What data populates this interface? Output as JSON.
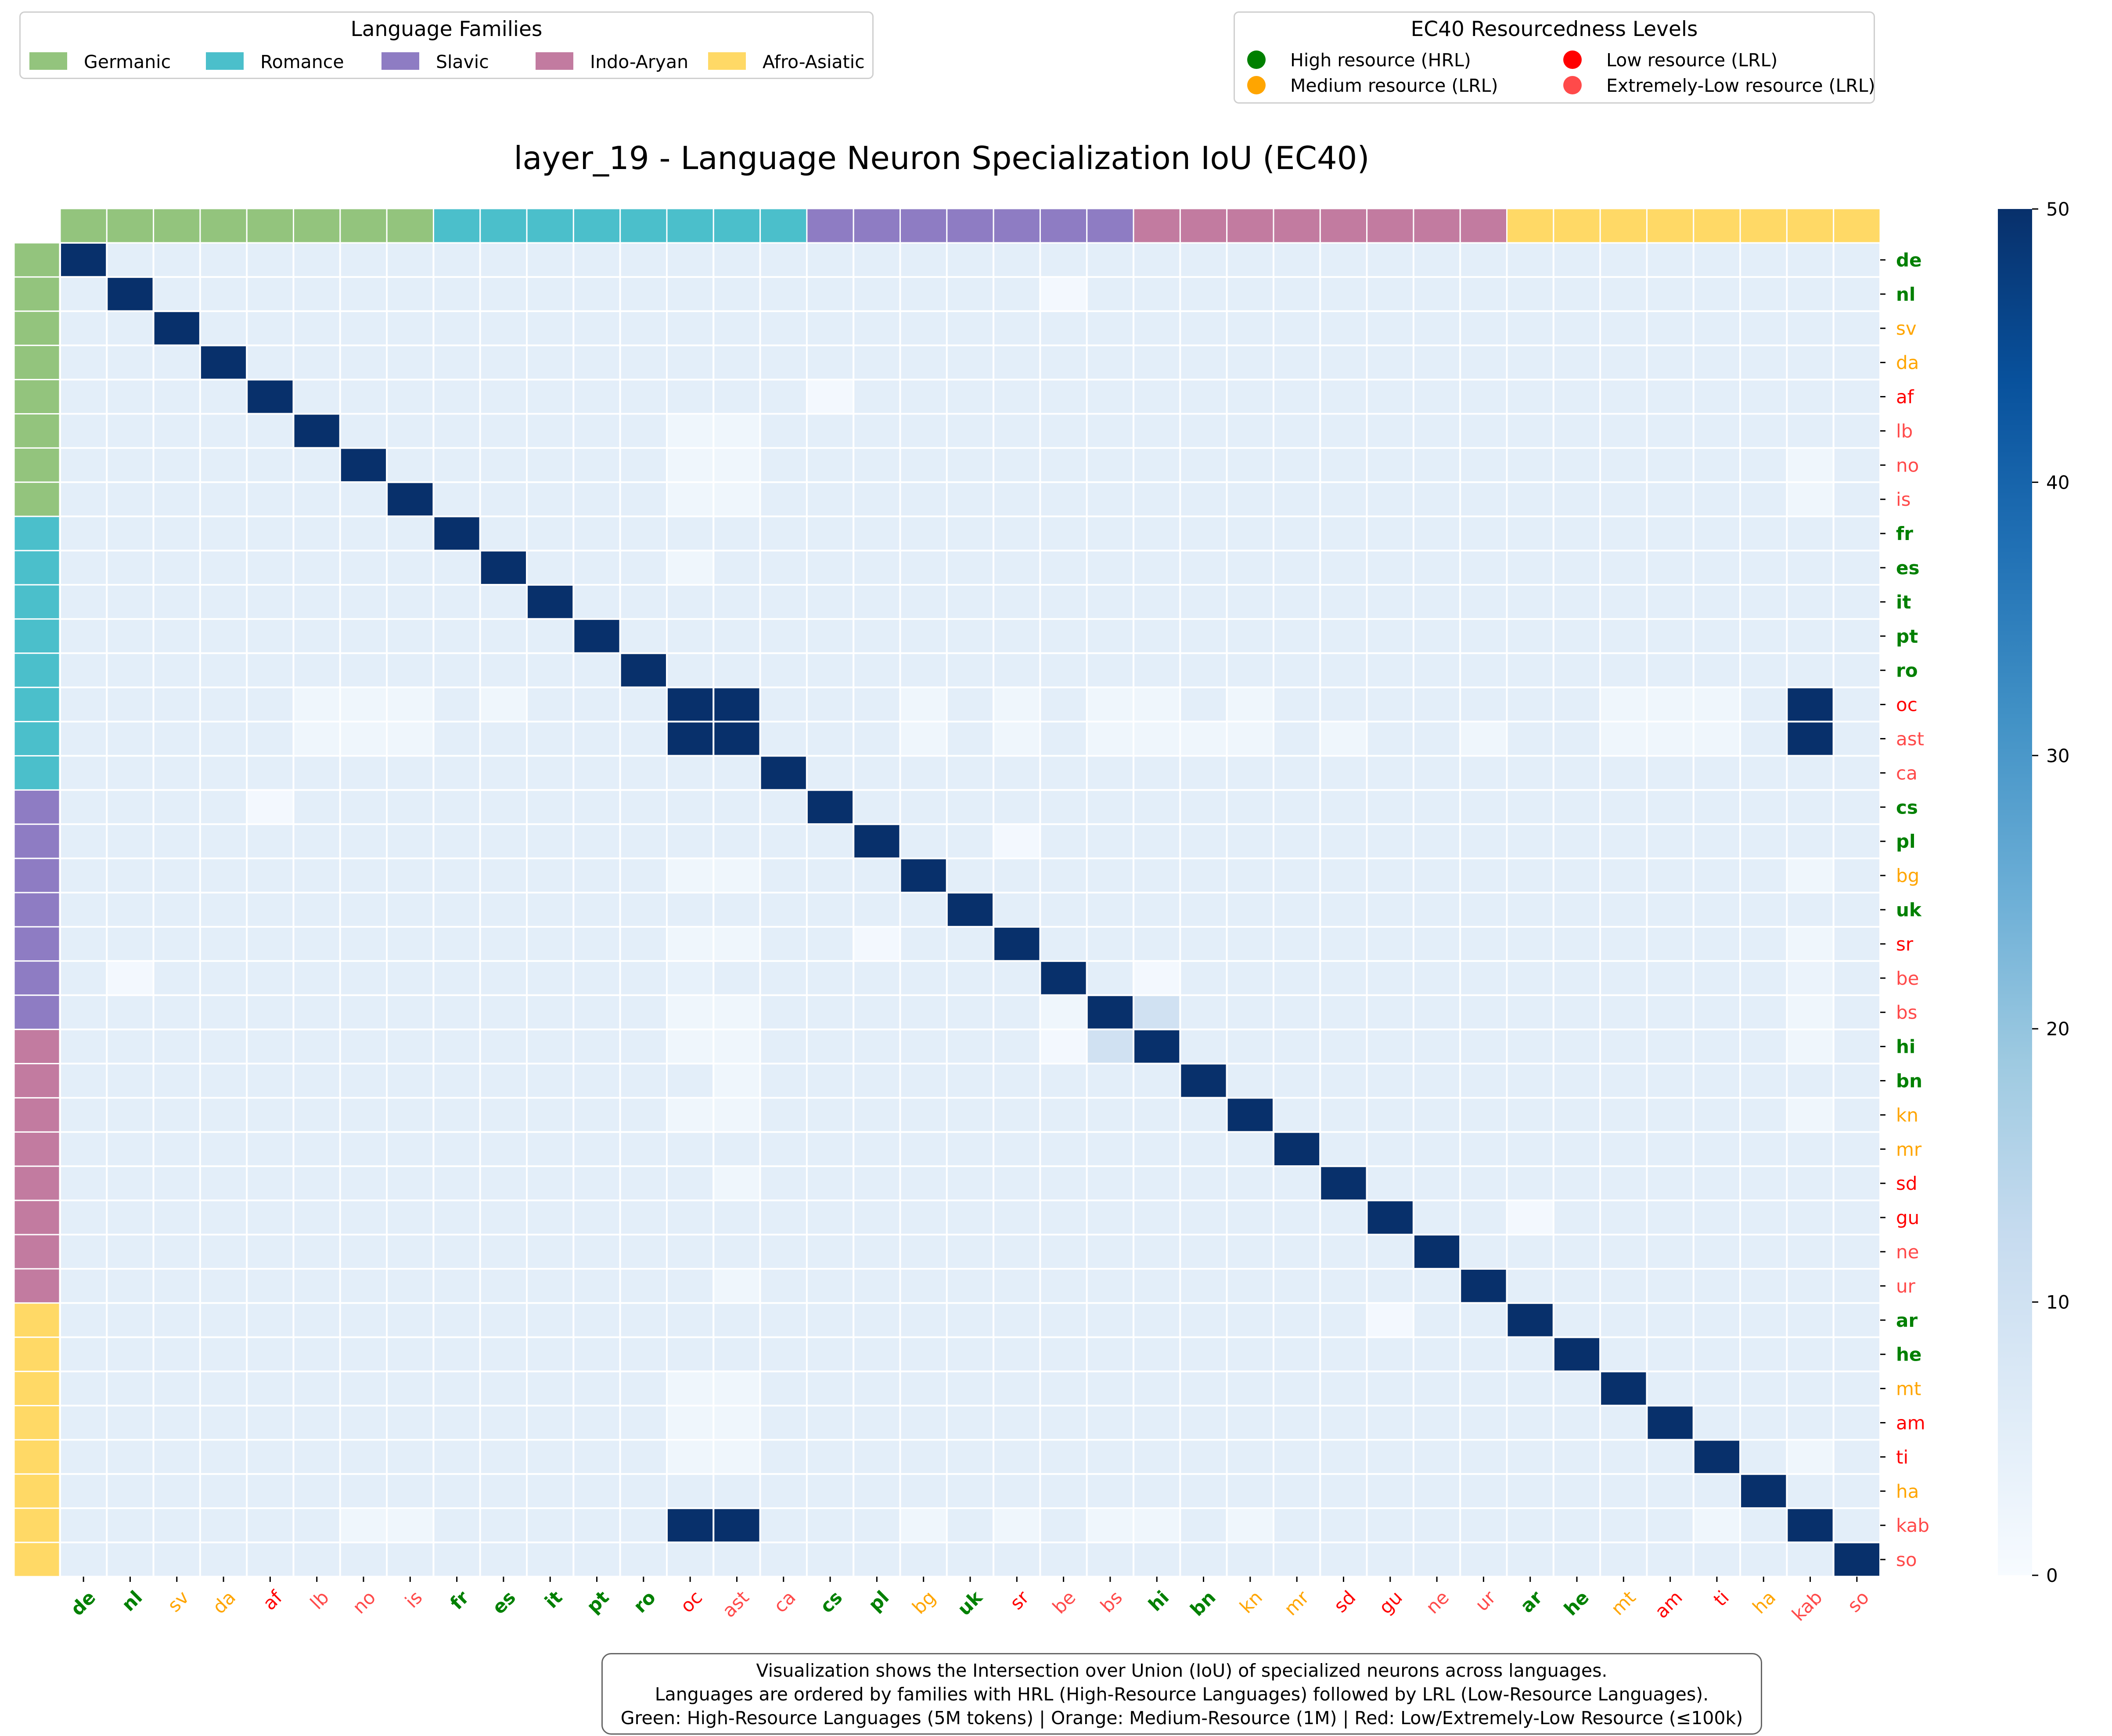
{
  "legend_families": {
    "title": "Language Families",
    "items": [
      {
        "label": "Germanic",
        "color": "#93c47d"
      },
      {
        "label": "Romance",
        "color": "#4bbfcb"
      },
      {
        "label": "Slavic",
        "color": "#8e7cc3"
      },
      {
        "label": "Indo-Aryan",
        "color": "#c27ba0"
      },
      {
        "label": "Afro-Asiatic",
        "color": "#ffd966"
      }
    ]
  },
  "legend_resource": {
    "title": "EC40 Resourcedness Levels",
    "items": [
      {
        "label": "High resource (HRL)",
        "color": "#008000"
      },
      {
        "label": "Low resource (LRL)",
        "color": "#ff0000"
      },
      {
        "label": "Medium resource (LRL)",
        "color": "#ffa500"
      },
      {
        "label": "Extremely-Low resource (LRL)",
        "color": "#ff4a4a"
      }
    ]
  },
  "note": {
    "line1": "Visualization shows the Intersection over Union (IoU) of specialized neurons across languages.",
    "line2": "Languages are ordered by families with HRL (High-Resource Languages) followed by LRL (Low-Resource Languages).",
    "line3": "Green: High-Resource Languages (5M tokens) | Orange: Medium-Resource (1M) | Red: Low/Extremely-Low Resource (≤100k)"
  },
  "chart_data": {
    "type": "heatmap",
    "title": "layer_19 - Language Neuron Specialization IoU (EC40)",
    "languages": [
      "de",
      "nl",
      "sv",
      "da",
      "af",
      "lb",
      "no",
      "is",
      "fr",
      "es",
      "it",
      "pt",
      "ro",
      "oc",
      "ast",
      "ca",
      "cs",
      "pl",
      "bg",
      "uk",
      "sr",
      "be",
      "bs",
      "hi",
      "bn",
      "kn",
      "mr",
      "sd",
      "gu",
      "ne",
      "ur",
      "ar",
      "he",
      "mt",
      "am",
      "ti",
      "ha",
      "kab",
      "so"
    ],
    "families": [
      "Germanic",
      "Germanic",
      "Germanic",
      "Germanic",
      "Germanic",
      "Germanic",
      "Germanic",
      "Germanic",
      "Romance",
      "Romance",
      "Romance",
      "Romance",
      "Romance",
      "Romance",
      "Romance",
      "Romance",
      "Slavic",
      "Slavic",
      "Slavic",
      "Slavic",
      "Slavic",
      "Slavic",
      "Slavic",
      "Indo-Aryan",
      "Indo-Aryan",
      "Indo-Aryan",
      "Indo-Aryan",
      "Indo-Aryan",
      "Indo-Aryan",
      "Indo-Aryan",
      "Indo-Aryan",
      "Afro-Asiatic",
      "Afro-Asiatic",
      "Afro-Asiatic",
      "Afro-Asiatic",
      "Afro-Asiatic",
      "Afro-Asiatic",
      "Afro-Asiatic",
      "Afro-Asiatic"
    ],
    "resource": [
      "high",
      "high",
      "medium",
      "medium",
      "low",
      "extremely-low",
      "extremely-low",
      "extremely-low",
      "high",
      "high",
      "high",
      "high",
      "high",
      "low",
      "extremely-low",
      "extremely-low",
      "high",
      "high",
      "medium",
      "high",
      "low",
      "extremely-low",
      "extremely-low",
      "high",
      "high",
      "medium",
      "medium",
      "low",
      "low",
      "extremely-low",
      "extremely-low",
      "high",
      "high",
      "medium",
      "low",
      "low",
      "medium",
      "extremely-low",
      "extremely-low"
    ],
    "resource_colors": {
      "high": "#008000",
      "medium": "#ffa500",
      "low": "#ff0000",
      "extremely-low": "#ff4a4a"
    },
    "diagonal_value": 50,
    "background_value": 5,
    "off_diagonal": [
      {
        "row": "oc",
        "col": "ast",
        "value": 50
      },
      {
        "row": "ast",
        "col": "oc",
        "value": 50
      },
      {
        "row": "oc",
        "col": "kab",
        "value": 50
      },
      {
        "row": "kab",
        "col": "oc",
        "value": 50
      },
      {
        "row": "ast",
        "col": "kab",
        "value": 50
      },
      {
        "row": "kab",
        "col": "ast",
        "value": 50
      },
      {
        "row": "bs",
        "col": "hi",
        "value": 10
      },
      {
        "row": "hi",
        "col": "bs",
        "value": 10
      },
      {
        "row": "nl",
        "col": "be",
        "value": 1
      },
      {
        "row": "be",
        "col": "nl",
        "value": 1
      },
      {
        "row": "af",
        "col": "cs",
        "value": 1
      },
      {
        "row": "cs",
        "col": "af",
        "value": 1
      },
      {
        "row": "pl",
        "col": "sr",
        "value": 1
      },
      {
        "row": "sr",
        "col": "pl",
        "value": 1
      },
      {
        "row": "gu",
        "col": "ar",
        "value": 1
      },
      {
        "row": "ar",
        "col": "gu",
        "value": 1
      },
      {
        "row": "be",
        "col": "hi",
        "value": 1
      },
      {
        "row": "hi",
        "col": "be",
        "value": 1
      },
      {
        "row": "es",
        "col": "oc",
        "value": 2
      },
      {
        "row": "oc",
        "col": "es",
        "value": 2
      },
      {
        "row": "lb",
        "col": "oc",
        "value": 2
      },
      {
        "row": "lb",
        "col": "ast",
        "value": 2
      },
      {
        "row": "no",
        "col": "oc",
        "value": 2
      },
      {
        "row": "no",
        "col": "ast",
        "value": 2
      },
      {
        "row": "is",
        "col": "oc",
        "value": 2
      },
      {
        "row": "is",
        "col": "ast",
        "value": 2
      },
      {
        "row": "oc",
        "col": "lb",
        "value": 2
      },
      {
        "row": "oc",
        "col": "no",
        "value": 2
      },
      {
        "row": "oc",
        "col": "is",
        "value": 2
      },
      {
        "row": "ast",
        "col": "lb",
        "value": 2
      },
      {
        "row": "ast",
        "col": "no",
        "value": 2
      },
      {
        "row": "ast",
        "col": "is",
        "value": 2
      },
      {
        "row": "no",
        "col": "kab",
        "value": 2
      },
      {
        "row": "is",
        "col": "kab",
        "value": 2
      },
      {
        "row": "kab",
        "col": "no",
        "value": 2
      },
      {
        "row": "kab",
        "col": "is",
        "value": 2
      },
      {
        "row": "oc",
        "col": "bg",
        "value": 2
      },
      {
        "row": "oc",
        "col": "sr",
        "value": 2
      },
      {
        "row": "oc",
        "col": "bs",
        "value": 2
      },
      {
        "row": "oc",
        "col": "hi",
        "value": 2
      },
      {
        "row": "oc",
        "col": "kn",
        "value": 2
      },
      {
        "row": "oc",
        "col": "mt",
        "value": 2
      },
      {
        "row": "oc",
        "col": "am",
        "value": 2
      },
      {
        "row": "oc",
        "col": "ti",
        "value": 2
      },
      {
        "row": "ast",
        "col": "bg",
        "value": 2
      },
      {
        "row": "ast",
        "col": "sr",
        "value": 2
      },
      {
        "row": "ast",
        "col": "bs",
        "value": 2
      },
      {
        "row": "ast",
        "col": "hi",
        "value": 2
      },
      {
        "row": "ast",
        "col": "bn",
        "value": 2
      },
      {
        "row": "ast",
        "col": "kn",
        "value": 2
      },
      {
        "row": "ast",
        "col": "sd",
        "value": 2
      },
      {
        "row": "ast",
        "col": "ur",
        "value": 2
      },
      {
        "row": "ast",
        "col": "mt",
        "value": 2
      },
      {
        "row": "ast",
        "col": "am",
        "value": 2
      },
      {
        "row": "ast",
        "col": "ti",
        "value": 2
      },
      {
        "row": "bg",
        "col": "oc",
        "value": 2
      },
      {
        "row": "bg",
        "col": "ast",
        "value": 2
      },
      {
        "row": "bg",
        "col": "kab",
        "value": 2
      },
      {
        "row": "sr",
        "col": "oc",
        "value": 2
      },
      {
        "row": "sr",
        "col": "ast",
        "value": 2
      },
      {
        "row": "sr",
        "col": "kab",
        "value": 2
      },
      {
        "row": "bs",
        "col": "oc",
        "value": 2
      },
      {
        "row": "bs",
        "col": "ast",
        "value": 2
      },
      {
        "row": "bs",
        "col": "be",
        "value": 2
      },
      {
        "row": "bs",
        "col": "kab",
        "value": 2
      },
      {
        "row": "hi",
        "col": "oc",
        "value": 2
      },
      {
        "row": "hi",
        "col": "ast",
        "value": 2
      },
      {
        "row": "hi",
        "col": "kab",
        "value": 2
      },
      {
        "row": "bn",
        "col": "ast",
        "value": 2
      },
      {
        "row": "kn",
        "col": "oc",
        "value": 2
      },
      {
        "row": "kn",
        "col": "ast",
        "value": 2
      },
      {
        "row": "kn",
        "col": "kab",
        "value": 2
      },
      {
        "row": "sd",
        "col": "ast",
        "value": 2
      },
      {
        "row": "ur",
        "col": "ast",
        "value": 2
      },
      {
        "row": "mt",
        "col": "oc",
        "value": 2
      },
      {
        "row": "mt",
        "col": "ast",
        "value": 2
      },
      {
        "row": "am",
        "col": "oc",
        "value": 2
      },
      {
        "row": "am",
        "col": "ast",
        "value": 2
      },
      {
        "row": "ti",
        "col": "oc",
        "value": 2
      },
      {
        "row": "ti",
        "col": "ast",
        "value": 2
      },
      {
        "row": "ti",
        "col": "kab",
        "value": 2
      },
      {
        "row": "kab",
        "col": "bg",
        "value": 2
      },
      {
        "row": "kab",
        "col": "sr",
        "value": 2
      },
      {
        "row": "kab",
        "col": "bs",
        "value": 2
      },
      {
        "row": "kab",
        "col": "hi",
        "value": 2
      },
      {
        "row": "kab",
        "col": "kn",
        "value": 2
      },
      {
        "row": "kab",
        "col": "ti",
        "value": 2
      },
      {
        "row": "be",
        "col": "kab",
        "value": 3
      },
      {
        "row": "be",
        "col": "oc",
        "value": 4
      }
    ],
    "colorbar": {
      "min": 0,
      "max": 50,
      "ticks": [
        0,
        10,
        20,
        30,
        40,
        50
      ]
    },
    "colormap": "Blues",
    "xlabel": "",
    "ylabel": ""
  }
}
